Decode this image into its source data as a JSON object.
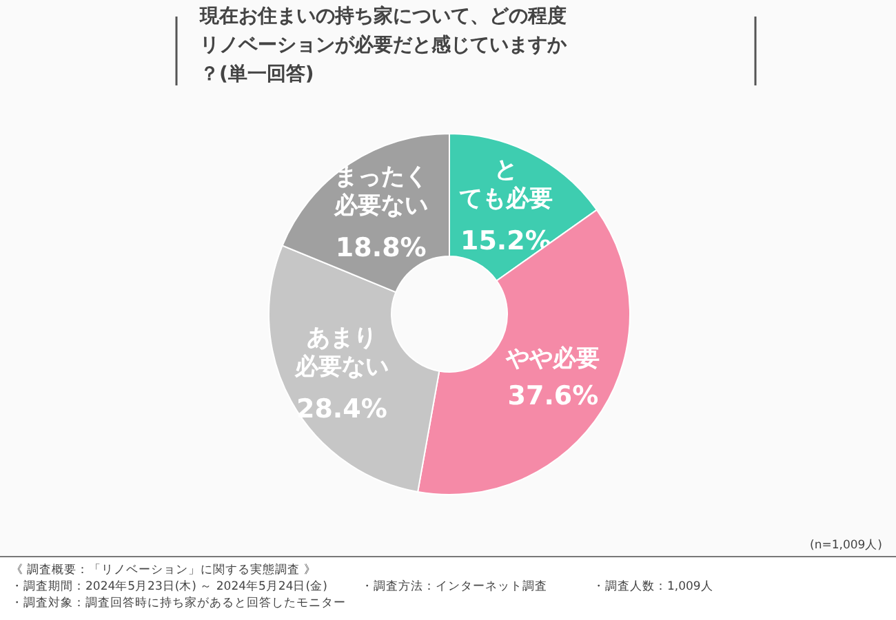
{
  "chart_data": {
    "type": "donut",
    "title": "現在お住まいの持ち家について、どの程度リノベーションが必要だと感じていますか？(単一回答)",
    "categories": [
      "とても必要",
      "やや必要",
      "あまり必要ない",
      "まったく必要ない"
    ],
    "values": [
      15.2,
      37.6,
      28.4,
      18.8
    ],
    "value_labels": [
      "15.2%",
      "37.6%",
      "28.4%",
      "18.8%"
    ],
    "colors": [
      "#3ecdb0",
      "#f58aa7",
      "#c6c6c6",
      "#a0a0a0"
    ],
    "annotations": [
      "(n=1,009人)",
      "《 調査概要：「リノベーション」に関する実態調査 》",
      "・調査期間：2024年5月23日(木) ～ 2024年5月24日(金)",
      "・調査対象：調査回答時に持ち家があると回答したモニター",
      "・調査方法：インターネット調査",
      "・調査人数：1,009人"
    ]
  }
}
